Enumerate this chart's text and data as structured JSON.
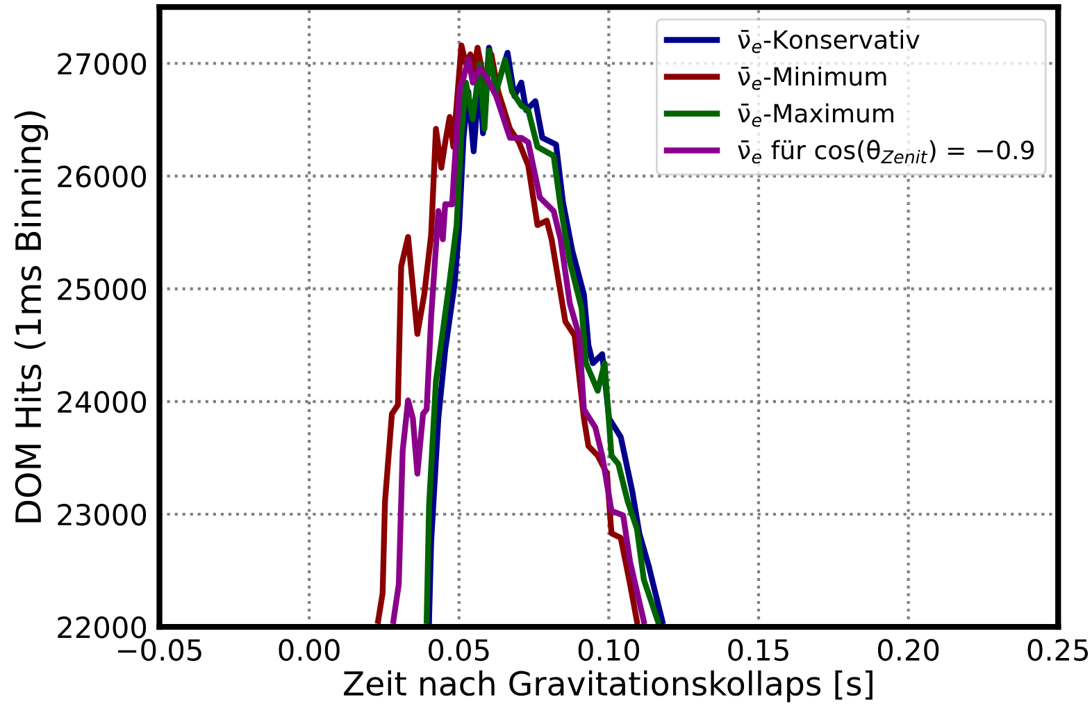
{
  "chart_data": {
    "type": "line",
    "xlabel": "Zeit nach Gravitationskollaps [s]",
    "ylabel": "DOM Hits (1ms Binning)",
    "xlim": [
      -0.05,
      0.25
    ],
    "xticks": [
      {
        "value": -0.05,
        "label": "−0.05"
      },
      {
        "value": 0.0,
        "label": "0.00"
      },
      0.05,
      {
        "value": 0.1,
        "label": "0.10"
      },
      0.15,
      {
        "value": 0.2,
        "label": "0.20"
      },
      0.25
    ],
    "ylim": [
      22000,
      27500
    ],
    "yticks": [
      22000,
      23000,
      24000,
      25000,
      26000,
      27000
    ],
    "grid": true,
    "legend": "top right",
    "line_style": "solid",
    "marker": "none",
    "series": [
      {
        "name": "ν̄$_{e}$-Konservativ",
        "color": "#00008b",
        "x": [
          0.04,
          0.0407,
          0.0431,
          0.0454,
          0.0485,
          0.05,
          0.0515,
          0.0531,
          0.0549,
          0.0569,
          0.058,
          0.06,
          0.0627,
          0.0662,
          0.0685,
          0.0708,
          0.0724,
          0.0755,
          0.0778,
          0.0824,
          0.0847,
          0.0878,
          0.0917,
          0.0932,
          0.0947,
          0.0978,
          0.1001,
          0.104,
          0.1079,
          0.1102,
          0.1133,
          0.1148,
          0.1179
        ],
        "values": [
          22053,
          22750,
          23850,
          24460,
          25035,
          25525,
          26340,
          26750,
          26220,
          26910,
          26380,
          27140,
          26790,
          27095,
          26710,
          26830,
          26585,
          26665,
          26340,
          26280,
          25770,
          25340,
          24950,
          24500,
          24340,
          24420,
          23850,
          23685,
          23195,
          22830,
          22545,
          22380,
          22050
        ]
      },
      {
        "name": "ν̄$_{e}$-Minimum",
        "color": "#8b0000",
        "x": [
          0.023,
          0.0245,
          0.0253,
          0.0276,
          0.0296,
          0.0307,
          0.033,
          0.0343,
          0.0361,
          0.0384,
          0.0407,
          0.0423,
          0.0441,
          0.0454,
          0.0469,
          0.0481,
          0.0508,
          0.0523,
          0.0538,
          0.0546,
          0.0562,
          0.0585,
          0.0608,
          0.0631,
          0.067,
          0.07,
          0.0731,
          0.0762,
          0.0793,
          0.0809,
          0.0855,
          0.0886,
          0.0917,
          0.0932,
          0.0963,
          0.0994,
          0.1009,
          0.104,
          0.1071,
          0.1094
        ],
        "values": [
          22053,
          22300,
          23115,
          23890,
          23970,
          25200,
          25460,
          25100,
          24600,
          24950,
          25480,
          26420,
          26075,
          26300,
          26525,
          26260,
          27160,
          26995,
          27080,
          26890,
          27140,
          26830,
          27080,
          26750,
          26420,
          26300,
          26095,
          25565,
          25605,
          25440,
          24710,
          24585,
          23850,
          23605,
          23520,
          23360,
          22830,
          22790,
          22380,
          22050
        ]
      },
      {
        "name": "ν̄$_{e}$-Maximum",
        "color": "#006400",
        "x": [
          0.0392,
          0.04,
          0.0423,
          0.0446,
          0.0469,
          0.0492,
          0.0508,
          0.0523,
          0.0546,
          0.0569,
          0.0585,
          0.06,
          0.0624,
          0.0654,
          0.0677,
          0.0708,
          0.0731,
          0.0762,
          0.0816,
          0.0839,
          0.087,
          0.0909,
          0.0924,
          0.0963,
          0.0986,
          0.1009,
          0.1032,
          0.1063,
          0.1094,
          0.1117,
          0.1164
        ],
        "values": [
          22053,
          23075,
          24180,
          24625,
          25075,
          25565,
          26380,
          26830,
          26505,
          26995,
          26420,
          27115,
          26750,
          27035,
          26750,
          26625,
          26585,
          26260,
          26180,
          25730,
          25240,
          24830,
          24340,
          24095,
          24340,
          23520,
          23445,
          23115,
          22870,
          22420,
          22050
        ]
      },
      {
        "name": "ν̄$_{e}$ für cos(θ$_{Zenit}$) = −0.9",
        "color": "#8b008b",
        "x": [
          0.0281,
          0.0299,
          0.0312,
          0.033,
          0.0346,
          0.0361,
          0.038,
          0.0392,
          0.0407,
          0.0431,
          0.0446,
          0.0454,
          0.0477,
          0.0485,
          0.0503,
          0.0515,
          0.0531,
          0.0546,
          0.0569,
          0.0593,
          0.0624,
          0.067,
          0.0708,
          0.0731,
          0.077,
          0.0816,
          0.0839,
          0.087,
          0.0901,
          0.0917,
          0.0955,
          0.0978,
          0.1009,
          0.1048,
          0.1071,
          0.1117
        ],
        "values": [
          22053,
          22380,
          23565,
          24010,
          23850,
          23360,
          23890,
          23930,
          24750,
          25690,
          25440,
          25750,
          25750,
          26095,
          26790,
          26870,
          27040,
          26830,
          26955,
          26870,
          26710,
          26340,
          26340,
          26300,
          25810,
          25690,
          25440,
          24870,
          24585,
          23930,
          23770,
          23520,
          23030,
          22990,
          22580,
          22050
        ]
      }
    ]
  }
}
